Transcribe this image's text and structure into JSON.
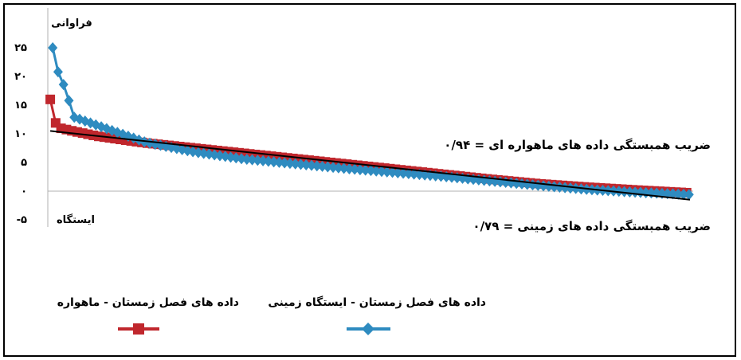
{
  "chart_data": {
    "type": "line",
    "ylabel": "فراوانی",
    "xlabel": "ایستگاه",
    "y_ticks": [
      "-۵",
      "۰",
      "۵",
      "۱۰",
      "۱۵",
      "۲۰",
      "۲۵"
    ],
    "y_tick_values": [
      -5,
      0,
      5,
      10,
      15,
      20,
      25
    ],
    "ylim": [
      -5,
      25
    ],
    "grid": false,
    "legend_position": "bottom",
    "annotations": {
      "satellite_correlation": "ضریب همبستگی داده های ماهواره ای = ۰/۹۴",
      "ground_correlation": "ضریب همبستگی  داده های زمینی = ۰/۷۹"
    },
    "series": [
      {
        "name": "داده های فصل زمستان - ماهواره",
        "color": "#c0272d",
        "marker": "square",
        "points": [
          [
            1,
            16
          ],
          [
            2,
            13.5
          ],
          [
            3,
            12
          ],
          [
            5,
            11
          ],
          [
            10,
            10.5
          ],
          [
            20,
            9.6
          ],
          [
            40,
            8.4
          ],
          [
            60,
            7.5
          ],
          [
            80,
            6.6
          ],
          [
            100,
            5.7
          ],
          [
            120,
            4.8
          ],
          [
            140,
            3.9
          ],
          [
            160,
            3.0
          ],
          [
            180,
            2.1
          ],
          [
            200,
            1.3
          ],
          [
            220,
            0.7
          ],
          [
            240,
            0.2
          ],
          [
            262,
            -0.3
          ]
        ]
      },
      {
        "name": "داده های فصل زمستان - ایستگاه زمینی",
        "color": "#2e8bc0",
        "marker": "diamond",
        "points": [
          [
            2,
            25
          ],
          [
            4,
            21
          ],
          [
            6,
            19
          ],
          [
            8,
            17
          ],
          [
            10,
            13
          ],
          [
            20,
            11.5
          ],
          [
            40,
            8.5
          ],
          [
            60,
            6.8
          ],
          [
            80,
            5.6
          ],
          [
            100,
            4.8
          ],
          [
            120,
            4.0
          ],
          [
            140,
            3.3
          ],
          [
            160,
            2.6
          ],
          [
            180,
            1.8
          ],
          [
            200,
            1.0
          ],
          [
            220,
            0.3
          ],
          [
            240,
            -0.2
          ],
          [
            262,
            -0.6
          ]
        ]
      }
    ],
    "trendline": {
      "color": "#000000",
      "points": [
        [
          1,
          10.5
        ],
        [
          262,
          -1.5
        ]
      ]
    }
  }
}
